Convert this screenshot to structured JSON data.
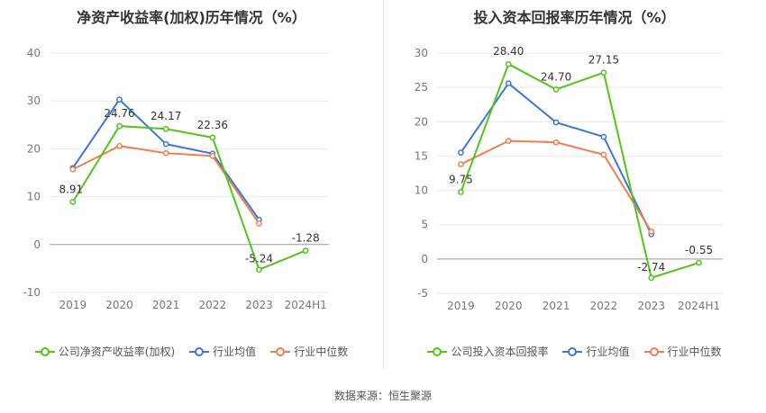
{
  "source": "数据来源：恒生聚源",
  "chart_data": [
    {
      "type": "line",
      "title": "净资产收益率(加权)历年情况（%）",
      "categories": [
        "2019",
        "2020",
        "2021",
        "2022",
        "2023",
        "2024H1"
      ],
      "ylim": [
        -10,
        40
      ],
      "yticks": [
        -10,
        0,
        10,
        20,
        30,
        40
      ],
      "grid": true,
      "legend_position": "bottom",
      "series": [
        {
          "name": "公司净资产收益率(加权)",
          "color": "#52c41a",
          "values": [
            8.91,
            24.76,
            24.17,
            22.36,
            -5.24,
            -1.28
          ],
          "labels": [
            "8.91",
            "24.76",
            "24.17",
            "22.36",
            "-5.24",
            "-1.28"
          ]
        },
        {
          "name": "行业均值",
          "color": "#3a78d8",
          "values": [
            16.0,
            30.3,
            21.0,
            19.0,
            5.2,
            null
          ]
        },
        {
          "name": "行业中位数",
          "color": "#f07f4f",
          "values": [
            15.7,
            20.6,
            19.1,
            18.5,
            4.4,
            null
          ]
        }
      ]
    },
    {
      "type": "line",
      "title": "投入资本回报率历年情况（%）",
      "categories": [
        "2019",
        "2020",
        "2021",
        "2022",
        "2023",
        "2024H1"
      ],
      "ylim": [
        -5,
        30
      ],
      "yticks": [
        -5,
        0,
        5,
        10,
        15,
        20,
        25,
        30
      ],
      "grid": true,
      "legend_position": "bottom",
      "series": [
        {
          "name": "公司投入资本回报率",
          "color": "#52c41a",
          "values": [
            9.75,
            28.4,
            24.7,
            27.15,
            -2.74,
            -0.55
          ],
          "labels": [
            "9.75",
            "28.40",
            "24.70",
            "27.15",
            "-2.74",
            "-0.55"
          ]
        },
        {
          "name": "行业均值",
          "color": "#3a78d8",
          "values": [
            15.5,
            25.6,
            19.9,
            17.8,
            3.6,
            null
          ]
        },
        {
          "name": "行业中位数",
          "color": "#f07f4f",
          "values": [
            13.8,
            17.2,
            17.0,
            15.2,
            4.0,
            null
          ]
        }
      ]
    }
  ]
}
